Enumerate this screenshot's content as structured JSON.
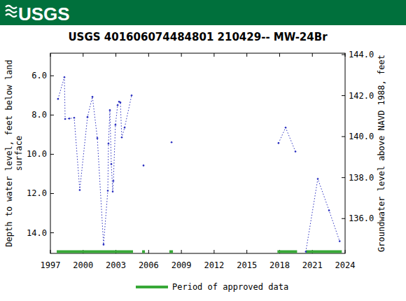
{
  "header": {
    "logo": "USGS"
  },
  "chart_data": {
    "type": "line",
    "title": "USGS 401606074484801 210429-- MW-24Br",
    "ylabel": [
      "Depth to water level, feet below land",
      "surface"
    ],
    "y2label": "Groundwater level above NAVD 1988, feet",
    "x": [
      1997.7,
      1998.28,
      1998.35,
      1998.73,
      1999.18,
      1999.69,
      2000.4,
      2000.85,
      2001.3,
      2001.87,
      2002.26,
      2002.32,
      2002.45,
      2002.58,
      2002.71,
      2002.77,
      2002.96,
      2003.16,
      2003.29,
      2003.41,
      2003.54,
      2003.8,
      2004.44,
      null,
      2005.53,
      null,
      2008.1,
      null,
      2017.9,
      2018.55,
      2019.45,
      null,
      2020.4,
      2021.5,
      2022.53,
      2023.5
    ],
    "series": [
      {
        "name": "MW-24Br",
        "color": "#2a2fc0",
        "line_style": "dotted",
        "marker": "dot",
        "values": [
          7.18,
          6.07,
          8.2,
          8.18,
          8.14,
          11.82,
          8.1,
          7.07,
          9.18,
          14.6,
          11.86,
          9.46,
          7.75,
          10.5,
          11.9,
          11.36,
          8.5,
          7.5,
          7.32,
          7.36,
          9.14,
          8.64,
          7.0,
          null,
          10.57,
          null,
          9.39,
          null,
          9.43,
          8.64,
          9.86,
          null,
          14.96,
          11.25,
          12.86,
          14.43
        ]
      }
    ],
    "periods": {
      "name": "Period of approved data",
      "color": "#37a837",
      "start": [
        1997.58,
        2005.4,
        2007.9,
        2017.8,
        2020.4
      ],
      "end": [
        2004.57,
        2005.66,
        2008.23,
        2019.6,
        2023.7
      ]
    },
    "xlim": [
      1997,
      2024
    ],
    "xticks": [
      1997,
      2000,
      2003,
      2006,
      2009,
      2012,
      2015,
      2018,
      2021,
      2024
    ],
    "ylim": [
      15.05,
      4.85
    ],
    "yticks": [
      {
        "value": 6,
        "label": "6.0"
      },
      {
        "value": 8,
        "label": "8.0"
      },
      {
        "value": 10,
        "label": "10.0"
      },
      {
        "value": 12,
        "label": "12.0"
      },
      {
        "value": 14,
        "label": "14.0"
      }
    ],
    "y2lim": [
      134.3,
      144.07
    ],
    "y2ticks": [
      {
        "value": 136,
        "label": "136.0"
      },
      {
        "value": 138,
        "label": "138.0"
      },
      {
        "value": 140,
        "label": "140.0"
      },
      {
        "value": 142,
        "label": "142.0"
      },
      {
        "value": 144,
        "label": "144.0"
      }
    ],
    "grid": false,
    "legend": "bottom"
  }
}
